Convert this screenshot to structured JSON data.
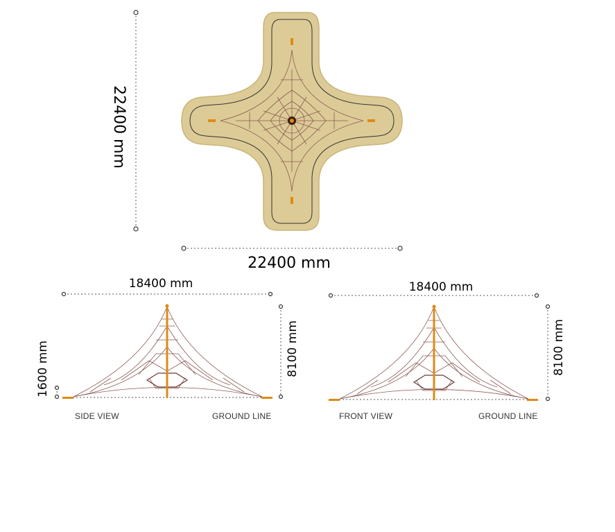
{
  "plan_view": {
    "height_label": "22400 mm",
    "width_label": "22400 mm"
  },
  "side_view": {
    "width_label": "18400 mm",
    "height_label": "8100 mm",
    "offset_label": "1600 mm",
    "view_caption": "SIDE VIEW",
    "ground_caption": "GROUND LINE"
  },
  "front_view": {
    "width_label": "18400 mm",
    "height_label": "8100 mm",
    "view_caption": "FRONT VIEW",
    "ground_caption": "GROUND LINE"
  },
  "colors": {
    "surface": "#dccb96",
    "surface_edge": "#c9b57a",
    "border_line": "#333333",
    "anchor": "#e08a14",
    "mast": "#e08a14",
    "rope": "#8a5a54"
  }
}
